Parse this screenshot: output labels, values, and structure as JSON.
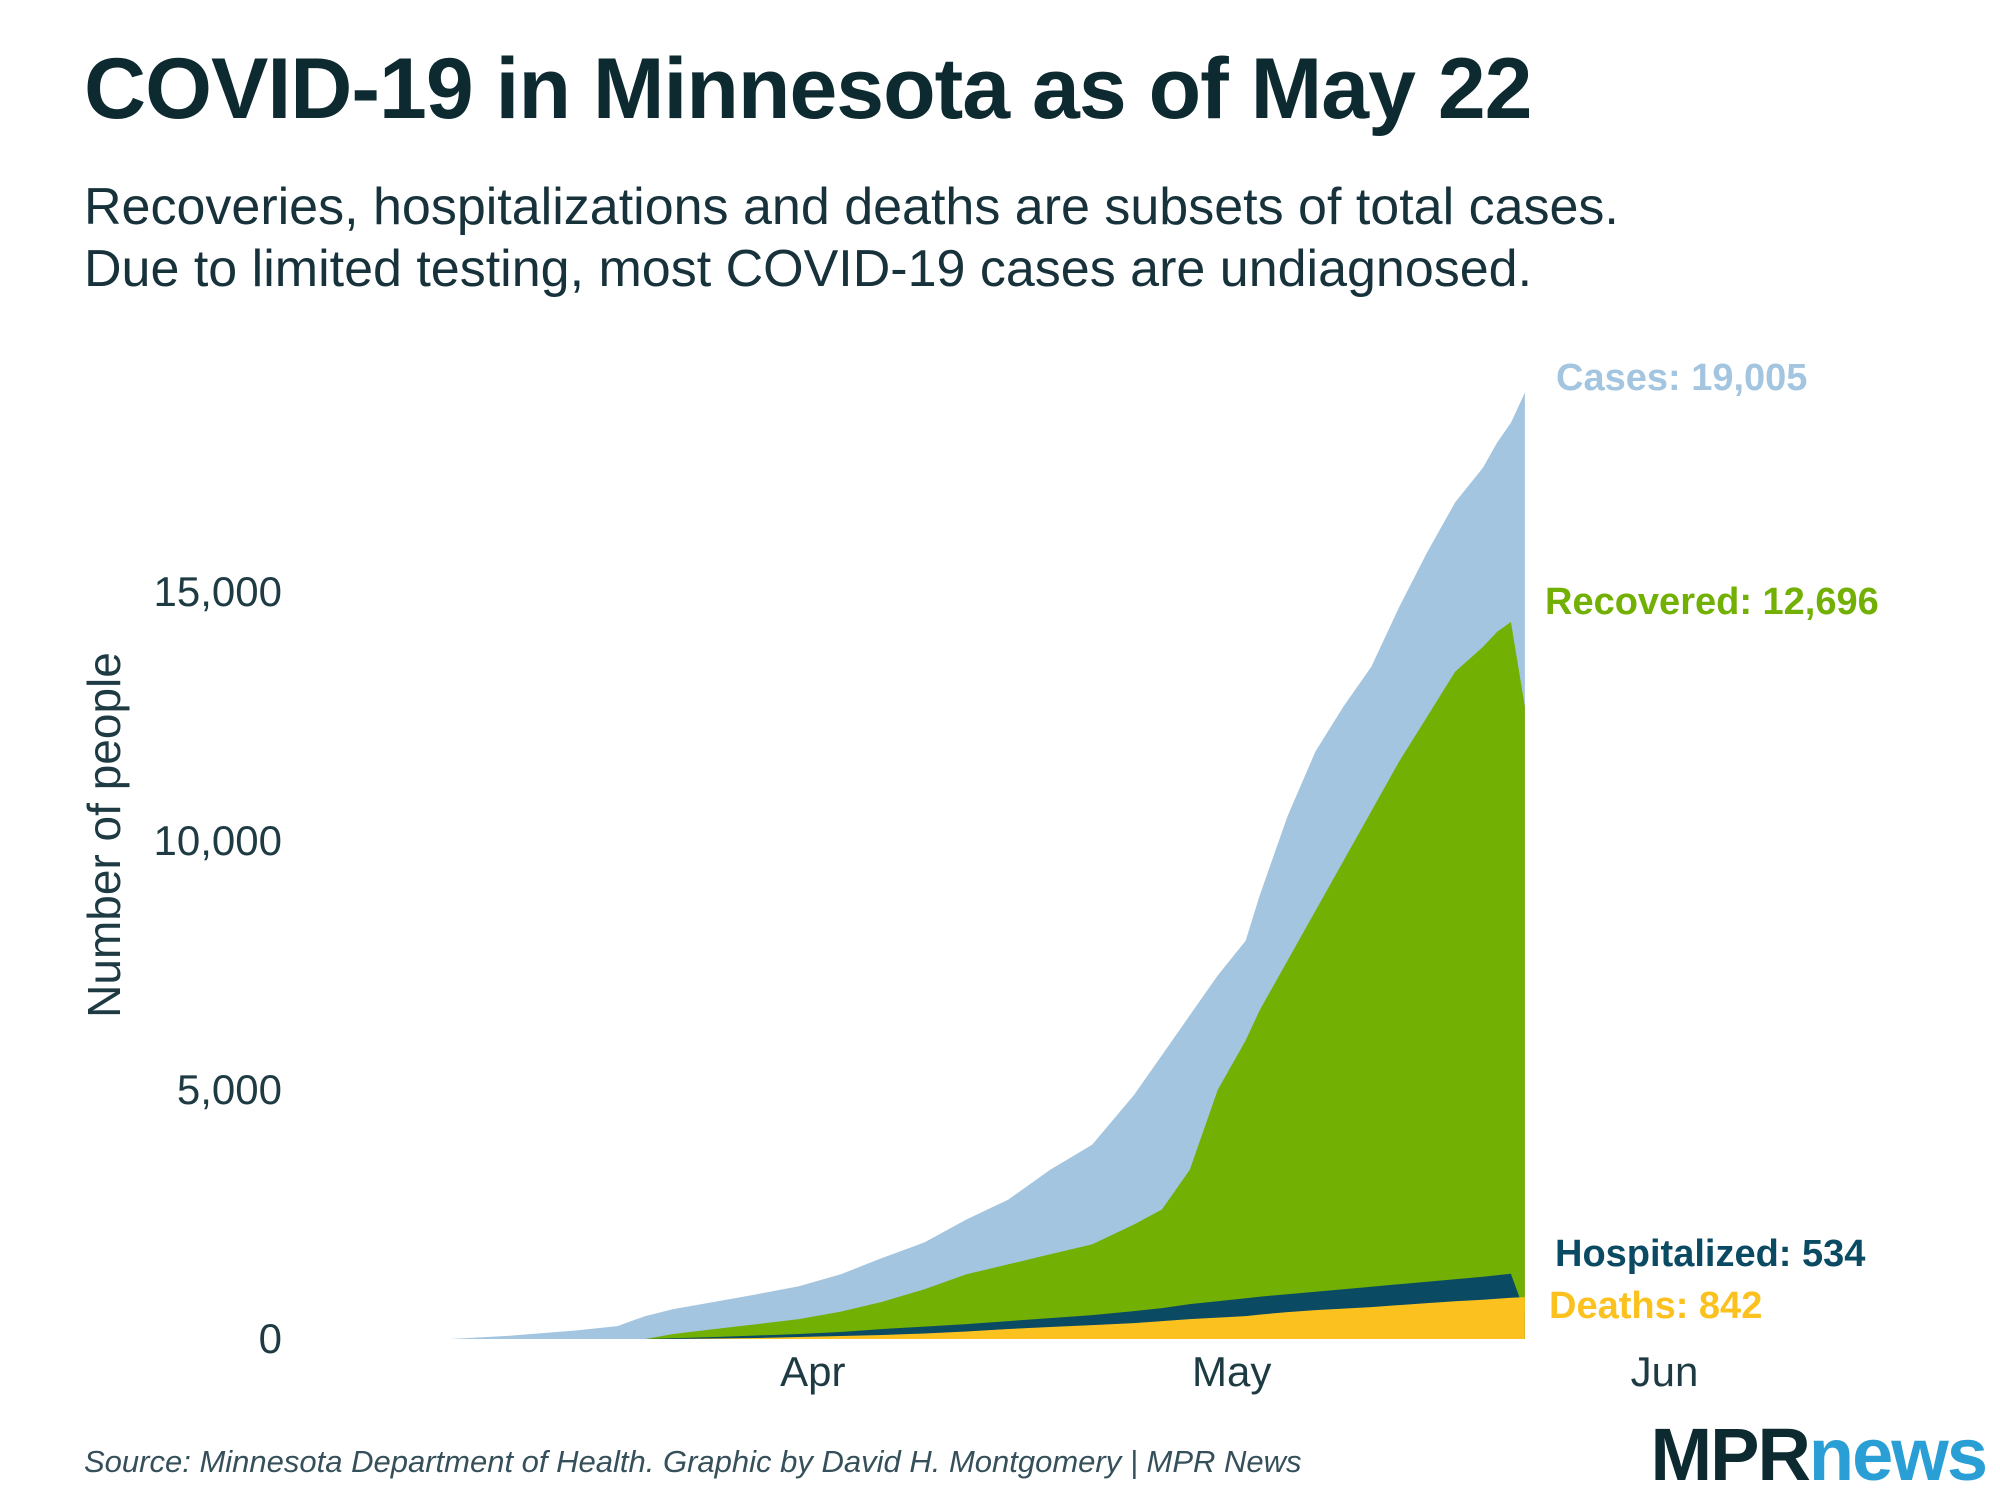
{
  "header": {
    "title": "COVID-19 in Minnesota as of May 22",
    "subtitle_line1": "Recoveries, hospitalizations and deaths are subsets of total cases.",
    "subtitle_line2": "Due to limited testing, most COVID-19 cases are undiagnosed."
  },
  "footer": {
    "source": "Source: Minnesota Department of Health. Graphic by David H. Montgomery | MPR News"
  },
  "logo": {
    "mpr": "MPR",
    "news": "news"
  },
  "colors": {
    "cases": "#a3c5df",
    "recovered": "#72b004",
    "hospitalized": "#0b4a63",
    "deaths": "#fbc21f",
    "text": "#1e3a43"
  },
  "chart_data": {
    "type": "area",
    "title": "COVID-19 in Minnesota as of May 22",
    "xlabel": "",
    "ylabel": "Number of people",
    "x_tick_labels": [
      "Apr",
      "May",
      "Jun"
    ],
    "x_tick_dates": [
      "2020-04-01",
      "2020-05-01",
      "2020-06-01"
    ],
    "y_ticks": [
      0,
      5000,
      10000,
      15000
    ],
    "y_tick_labels": [
      "0",
      "5,000",
      "10,000",
      "15,000"
    ],
    "xlim": [
      "2020-03-01",
      "2020-06-15"
    ],
    "ylim": [
      0,
      19500
    ],
    "grid": false,
    "legend": "end-of-series labels",
    "x": [
      "2020-03-06",
      "2020-03-10",
      "2020-03-15",
      "2020-03-18",
      "2020-03-20",
      "2020-03-22",
      "2020-03-25",
      "2020-03-28",
      "2020-03-31",
      "2020-04-03",
      "2020-04-06",
      "2020-04-09",
      "2020-04-12",
      "2020-04-15",
      "2020-04-18",
      "2020-04-21",
      "2020-04-24",
      "2020-04-26",
      "2020-04-28",
      "2020-04-30",
      "2020-05-02",
      "2020-05-03",
      "2020-05-05",
      "2020-05-07",
      "2020-05-09",
      "2020-05-11",
      "2020-05-13",
      "2020-05-15",
      "2020-05-17",
      "2020-05-19",
      "2020-05-20",
      "2020-05-21",
      "2020-05-22"
    ],
    "series": [
      {
        "name": "Cases",
        "end_label": "Cases: 19,005",
        "values": [
          1,
          60,
          170,
          260,
          460,
          600,
          750,
          900,
          1060,
          1300,
          1630,
          1940,
          2400,
          2800,
          3400,
          3900,
          4900,
          5700,
          6500,
          7300,
          8000,
          8900,
          10500,
          11800,
          12700,
          13500,
          14700,
          15800,
          16800,
          17500,
          18000,
          18400,
          19005
        ]
      },
      {
        "name": "Recovered",
        "end_label": "Recovered: 12,696",
        "values": [
          0,
          0,
          0,
          0,
          0,
          100,
          200,
          300,
          400,
          550,
          750,
          1000,
          1300,
          1500,
          1700,
          1900,
          2300,
          2600,
          3400,
          5000,
          6000,
          6600,
          7600,
          8600,
          9600,
          10600,
          11600,
          12500,
          13400,
          13900,
          14200,
          14400,
          12696
        ]
      },
      {
        "name": "Hospitalized",
        "end_label": "Hospitalized: 534",
        "values": [
          0,
          0,
          0,
          0,
          0,
          15,
          40,
          70,
          100,
          140,
          200,
          250,
          300,
          360,
          420,
          480,
          560,
          620,
          700,
          760,
          820,
          850,
          900,
          950,
          1000,
          1050,
          1100,
          1150,
          1200,
          1250,
          1280,
          1310,
          534
        ]
      },
      {
        "name": "Deaths",
        "end_label": "Deaths: 842",
        "values": [
          0,
          0,
          0,
          0,
          0,
          0,
          10,
          20,
          40,
          60,
          80,
          110,
          150,
          200,
          240,
          280,
          320,
          360,
          400,
          430,
          460,
          490,
          540,
          580,
          610,
          640,
          680,
          720,
          760,
          790,
          810,
          830,
          842
        ]
      }
    ]
  }
}
